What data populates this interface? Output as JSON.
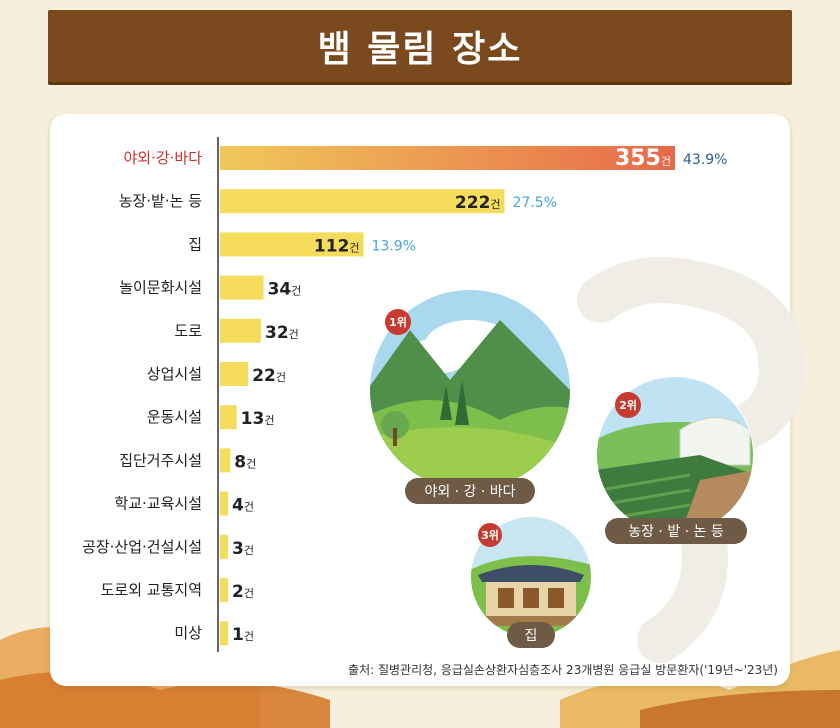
{
  "header": {
    "title": "뱀 물림 장소"
  },
  "chart_data": {
    "type": "bar",
    "orientation": "horizontal",
    "categories": [
      "야외·강·바다",
      "농장·밭·논 등",
      "집",
      "놀이문화시설",
      "도로",
      "상업시설",
      "운동시설",
      "집단거주시설",
      "학교·교육시설",
      "공장·산업·건설시설",
      "도로외 교통지역",
      "미상"
    ],
    "values": [
      355,
      222,
      112,
      34,
      32,
      22,
      13,
      8,
      4,
      3,
      2,
      1
    ],
    "unit": "건",
    "percentages": [
      "43.9%",
      "27.5%",
      "13.9%"
    ],
    "highlight_index": 0,
    "xlim": [
      0,
      355
    ],
    "colors": {
      "bar": "#f5dc5c",
      "gradient_start": "#f0c85a",
      "gradient_end": "#e8694a",
      "highlight_label": "#d0312d",
      "pct_first": "#2b5b9a",
      "pct_other": "#45a8d8"
    }
  },
  "illustrations": [
    {
      "rank": "1위",
      "label": "야외 · 강 · 바다"
    },
    {
      "rank": "2위",
      "label": "농장 · 밭 · 논 등"
    },
    {
      "rank": "3위",
      "label": "집"
    }
  ],
  "source": "출처: 질병관리청, 응급실손상환자심층조사 23개병원 응급실 방문환자('19년~'23년)"
}
